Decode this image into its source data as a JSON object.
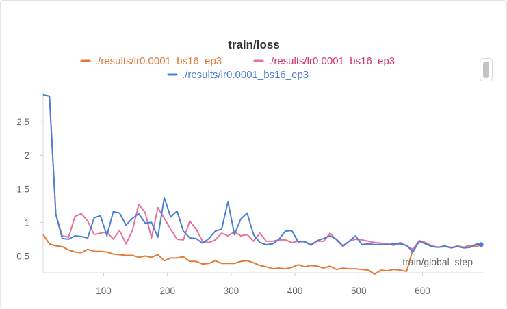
{
  "chart_data": {
    "type": "line",
    "title": "train/loss",
    "xlabel": "train/global_step",
    "ylabel": "",
    "xlim": [
      5,
      695
    ],
    "ylim": [
      0.25,
      2.95
    ],
    "x_ticks": [
      100,
      200,
      300,
      400,
      500,
      600
    ],
    "y_ticks": [
      0.5,
      1,
      1.5,
      2,
      2.5
    ],
    "x_tick_labels": [
      "100",
      "200",
      "300",
      "400",
      "500",
      "600"
    ],
    "y_tick_labels": [
      "0.5",
      "1",
      "1.5",
      "2",
      "2.5"
    ],
    "grid": false,
    "legend_position": "top-center",
    "series": [
      {
        "name": "./results/lr0.0001_bs16_ep3",
        "color": "#e07b39",
        "x": [
          5,
          15,
          25,
          35,
          45,
          55,
          65,
          75,
          85,
          95,
          105,
          115,
          125,
          135,
          145,
          155,
          165,
          175,
          185,
          195,
          205,
          215,
          225,
          235,
          245,
          255,
          265,
          275,
          285,
          295,
          305,
          315,
          325,
          335,
          345,
          355,
          365,
          375,
          385,
          395,
          405,
          415,
          425,
          435,
          445,
          455,
          465,
          475,
          485,
          495,
          505,
          515,
          525,
          535,
          545,
          555,
          565,
          575,
          585,
          595,
          605,
          615,
          625,
          635,
          645,
          655,
          665,
          675,
          685,
          692
        ],
        "values": [
          0.82,
          0.68,
          0.65,
          0.64,
          0.59,
          0.56,
          0.55,
          0.6,
          0.57,
          0.57,
          0.56,
          0.53,
          0.52,
          0.51,
          0.51,
          0.48,
          0.5,
          0.48,
          0.52,
          0.43,
          0.47,
          0.47,
          0.49,
          0.42,
          0.42,
          0.38,
          0.39,
          0.43,
          0.39,
          0.39,
          0.39,
          0.42,
          0.43,
          0.4,
          0.36,
          0.34,
          0.31,
          0.32,
          0.31,
          0.33,
          0.37,
          0.34,
          0.36,
          0.35,
          0.32,
          0.35,
          0.3,
          0.32,
          0.31,
          0.31,
          0.3,
          0.29,
          0.23,
          0.29,
          0.28,
          0.3,
          0.29,
          0.27,
          0.6,
          0.72,
          0.68,
          0.64,
          0.63,
          0.64,
          0.62,
          0.65,
          0.63,
          0.66,
          0.64,
          0.67
        ]
      },
      {
        "name": "./results/lr0.0001_bs16_ep3",
        "color": "#e8719b",
        "x": [
          5,
          15,
          25,
          35,
          45,
          55,
          65,
          75,
          85,
          95,
          105,
          115,
          125,
          135,
          145,
          155,
          165,
          175,
          185,
          195,
          205,
          215,
          225,
          235,
          245,
          255,
          265,
          275,
          285,
          295,
          305,
          315,
          325,
          335,
          345,
          355,
          365,
          375,
          385,
          395,
          405,
          415,
          425,
          435,
          445,
          455,
          465,
          475,
          485,
          495,
          505,
          515,
          525,
          535,
          545,
          555,
          565,
          575,
          585,
          595,
          605,
          615,
          625,
          635,
          645,
          655,
          665,
          675,
          685,
          692
        ],
        "values": [
          2.9,
          2.88,
          1.12,
          0.8,
          0.78,
          1.09,
          1.13,
          1.02,
          0.82,
          0.84,
          0.86,
          0.75,
          0.88,
          0.68,
          0.88,
          1.27,
          1.15,
          0.77,
          1.22,
          1.06,
          0.9,
          0.75,
          0.74,
          1.02,
          0.9,
          0.72,
          0.7,
          0.74,
          0.84,
          0.8,
          0.86,
          0.8,
          0.82,
          0.72,
          0.84,
          0.72,
          0.72,
          0.74,
          0.74,
          0.7,
          0.72,
          0.71,
          0.68,
          0.72,
          0.72,
          0.84,
          0.74,
          0.64,
          0.72,
          0.75,
          0.74,
          0.72,
          0.7,
          0.69,
          0.68,
          0.66,
          0.7,
          0.65,
          0.6,
          0.73,
          0.7,
          0.65,
          0.63,
          0.64,
          0.63,
          0.64,
          0.63,
          0.64,
          0.67,
          0.67
        ]
      },
      {
        "name": "./results/lr0.0001_bs16_ep3",
        "color": "#4a7fd6",
        "x": [
          5,
          15,
          25,
          35,
          45,
          55,
          65,
          75,
          85,
          95,
          105,
          115,
          125,
          135,
          145,
          155,
          165,
          175,
          185,
          195,
          205,
          215,
          225,
          235,
          245,
          255,
          265,
          275,
          285,
          295,
          305,
          315,
          325,
          335,
          345,
          355,
          365,
          375,
          385,
          395,
          405,
          415,
          425,
          435,
          445,
          455,
          465,
          475,
          485,
          495,
          505,
          515,
          525,
          535,
          545,
          555,
          565,
          575,
          585,
          595,
          605,
          615,
          625,
          635,
          645,
          655,
          665,
          675,
          685,
          692
        ],
        "values": [
          2.9,
          2.88,
          1.12,
          0.76,
          0.75,
          0.8,
          0.79,
          0.77,
          1.07,
          1.1,
          0.8,
          1.16,
          1.14,
          0.96,
          1.06,
          1.13,
          0.99,
          1.0,
          0.78,
          1.37,
          1.08,
          1.17,
          0.87,
          0.77,
          0.76,
          0.69,
          0.76,
          0.87,
          0.9,
          1.31,
          0.82,
          1.05,
          1.14,
          0.82,
          0.7,
          0.67,
          0.68,
          0.75,
          0.87,
          0.88,
          0.71,
          0.72,
          0.66,
          0.73,
          0.76,
          0.8,
          0.75,
          0.65,
          0.72,
          0.8,
          0.67,
          0.68,
          0.67,
          0.67,
          0.67,
          0.68,
          0.68,
          0.66,
          0.56,
          0.72,
          0.68,
          0.64,
          0.63,
          0.65,
          0.62,
          0.64,
          0.62,
          0.63,
          0.68,
          0.67
        ]
      }
    ]
  }
}
